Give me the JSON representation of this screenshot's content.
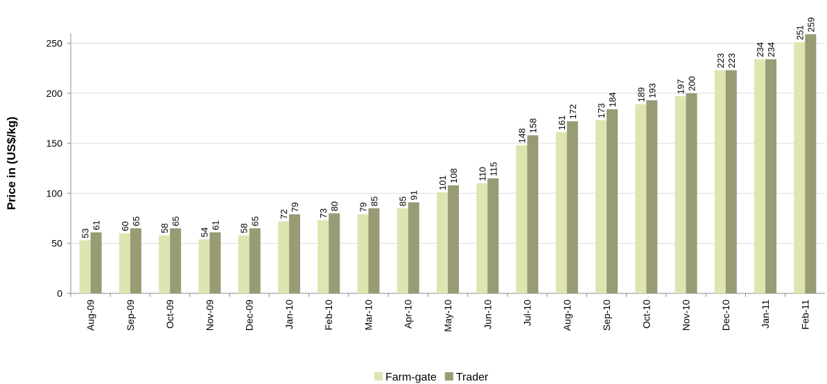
{
  "chart_data": {
    "type": "bar",
    "y_label": "Price in (US$/kg)",
    "categories": [
      "Aug-09",
      "Sep-09",
      "Oct-09",
      "Nov-09",
      "Dec-09",
      "Jan-10",
      "Feb-10",
      "Mar-10",
      "Apr-10",
      "May-10",
      "Jun-10",
      "Jul-10",
      "Aug-10",
      "Sep-10",
      "Oct-10",
      "Nov-10",
      "Dec-10",
      "Jan-11",
      "Feb-11"
    ],
    "series": [
      {
        "name": "Farm-gate",
        "color": "#dde5b1",
        "values": [
          53,
          60,
          58,
          54,
          58,
          72,
          73,
          79,
          85,
          101,
          110,
          148,
          161,
          173,
          189,
          197,
          223,
          234,
          251
        ]
      },
      {
        "name": "Trader",
        "color": "#989b74",
        "values": [
          61,
          65,
          65,
          61,
          65,
          79,
          80,
          85,
          91,
          108,
          115,
          158,
          172,
          184,
          193,
          200,
          223,
          234,
          259
        ]
      }
    ],
    "ylim": [
      0,
      260
    ],
    "yticks": [
      0,
      50,
      100,
      150,
      200,
      250
    ],
    "grid": true,
    "legend": "bottom"
  }
}
